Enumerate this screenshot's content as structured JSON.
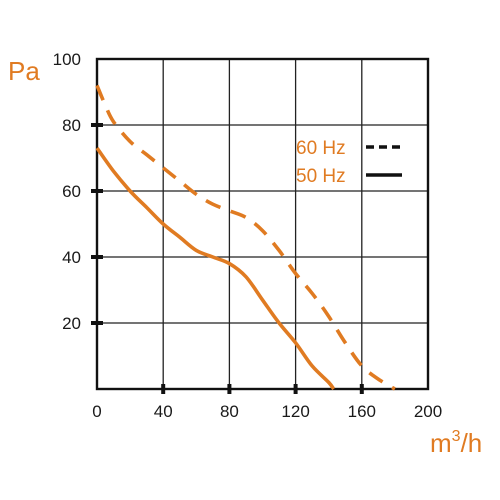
{
  "chart_data": {
    "type": "line",
    "title": "",
    "ylabel": "Pa",
    "xlabel_base": "m",
    "xlabel_exp": "3",
    "xlabel_tail": "/h",
    "xlim": [
      0,
      200
    ],
    "ylim": [
      0,
      100
    ],
    "x_ticks": [
      "0",
      "40",
      "80",
      "120",
      "160",
      "200"
    ],
    "y_ticks": [
      "20",
      "40",
      "60",
      "80",
      "100"
    ],
    "grid": true,
    "legend_position": "top-right",
    "colors": {
      "curve": "#e07b22",
      "legend_sample": "#111111",
      "axis": "#111111",
      "grid": "#222222",
      "text": "#1a1a1a"
    },
    "series": [
      {
        "name": "60 Hz",
        "style": "dashed",
        "x": [
          0,
          5,
          10,
          20,
          30,
          40,
          50,
          60,
          70,
          80,
          90,
          100,
          110,
          120,
          130,
          140,
          150,
          160,
          170,
          180
        ],
        "y": [
          92,
          86,
          81,
          75,
          71,
          67,
          63,
          59,
          56,
          54,
          52,
          48,
          42,
          35,
          29,
          22,
          14,
          7,
          3,
          0
        ]
      },
      {
        "name": "50 Hz",
        "style": "solid",
        "x": [
          0,
          10,
          20,
          30,
          40,
          50,
          60,
          70,
          80,
          90,
          100,
          110,
          120,
          130,
          140,
          143
        ],
        "y": [
          73,
          66,
          60,
          55,
          50,
          46,
          42,
          40,
          38,
          34,
          27,
          20,
          14,
          7,
          2,
          0
        ]
      }
    ]
  }
}
